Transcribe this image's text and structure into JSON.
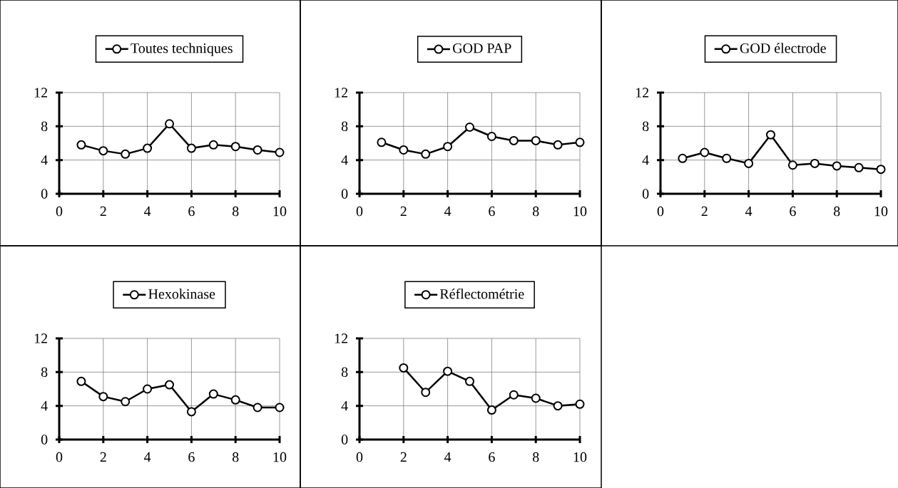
{
  "chart_data": [
    {
      "type": "line",
      "x": [
        1,
        2,
        3,
        4,
        5,
        6,
        7,
        8,
        9,
        10
      ],
      "series": [
        {
          "name": "Toutes techniques",
          "color": "#000000",
          "values": [
            5.8,
            5.1,
            4.7,
            5.4,
            8.3,
            5.4,
            5.8,
            5.6,
            5.2,
            4.9
          ]
        }
      ],
      "xlim": [
        0,
        10
      ],
      "xticks": [
        0,
        2,
        4,
        6,
        8,
        10
      ],
      "ylim": [
        0,
        12
      ],
      "yticks": [
        0,
        4,
        8,
        12
      ],
      "grid": true,
      "legend": "top",
      "marker": "circle"
    },
    {
      "type": "line",
      "x": [
        1,
        2,
        3,
        4,
        5,
        6,
        7,
        8,
        9,
        10
      ],
      "series": [
        {
          "name": "GOD PAP",
          "color": "#000000",
          "values": [
            6.1,
            5.2,
            4.7,
            5.6,
            7.9,
            6.8,
            6.3,
            6.3,
            5.8,
            6.1
          ]
        }
      ],
      "xlim": [
        0,
        10
      ],
      "xticks": [
        0,
        2,
        4,
        6,
        8,
        10
      ],
      "ylim": [
        0,
        12
      ],
      "yticks": [
        0,
        4,
        8,
        12
      ],
      "grid": true,
      "legend": "top",
      "marker": "circle"
    },
    {
      "type": "line",
      "x": [
        1,
        2,
        3,
        4,
        5,
        6,
        7,
        8,
        9,
        10
      ],
      "series": [
        {
          "name": "GOD électrode",
          "color": "#000000",
          "values": [
            4.2,
            4.9,
            4.2,
            3.6,
            7.0,
            3.4,
            3.6,
            3.3,
            3.1,
            2.9
          ]
        }
      ],
      "xlim": [
        0,
        10
      ],
      "xticks": [
        0,
        2,
        4,
        6,
        8,
        10
      ],
      "ylim": [
        0,
        12
      ],
      "yticks": [
        0,
        4,
        8,
        12
      ],
      "grid": true,
      "legend": "top",
      "marker": "circle"
    },
    {
      "type": "line",
      "x": [
        1,
        2,
        3,
        4,
        5,
        6,
        7,
        8,
        9,
        10
      ],
      "series": [
        {
          "name": "Hexokinase",
          "color": "#000000",
          "values": [
            6.9,
            5.1,
            4.5,
            6.0,
            6.5,
            3.3,
            5.4,
            4.7,
            3.8,
            3.8
          ]
        }
      ],
      "xlim": [
        0,
        10
      ],
      "xticks": [
        0,
        2,
        4,
        6,
        8,
        10
      ],
      "ylim": [
        0,
        12
      ],
      "yticks": [
        0,
        4,
        8,
        12
      ],
      "grid": true,
      "legend": "top",
      "marker": "circle"
    },
    {
      "type": "line",
      "series": [
        {
          "name": "Réflectométrie",
          "color": "#000000",
          "x": [
            2,
            3,
            4,
            5,
            6,
            7,
            8,
            9,
            10
          ],
          "values": [
            8.5,
            5.6,
            8.1,
            6.9,
            3.5,
            5.3,
            4.9,
            4.0,
            4.2
          ]
        }
      ],
      "xlim": [
        0,
        10
      ],
      "xticks": [
        0,
        2,
        4,
        6,
        8,
        10
      ],
      "ylim": [
        0,
        12
      ],
      "yticks": [
        0,
        4,
        8,
        12
      ],
      "grid": true,
      "legend": "top",
      "marker": "circle"
    }
  ]
}
